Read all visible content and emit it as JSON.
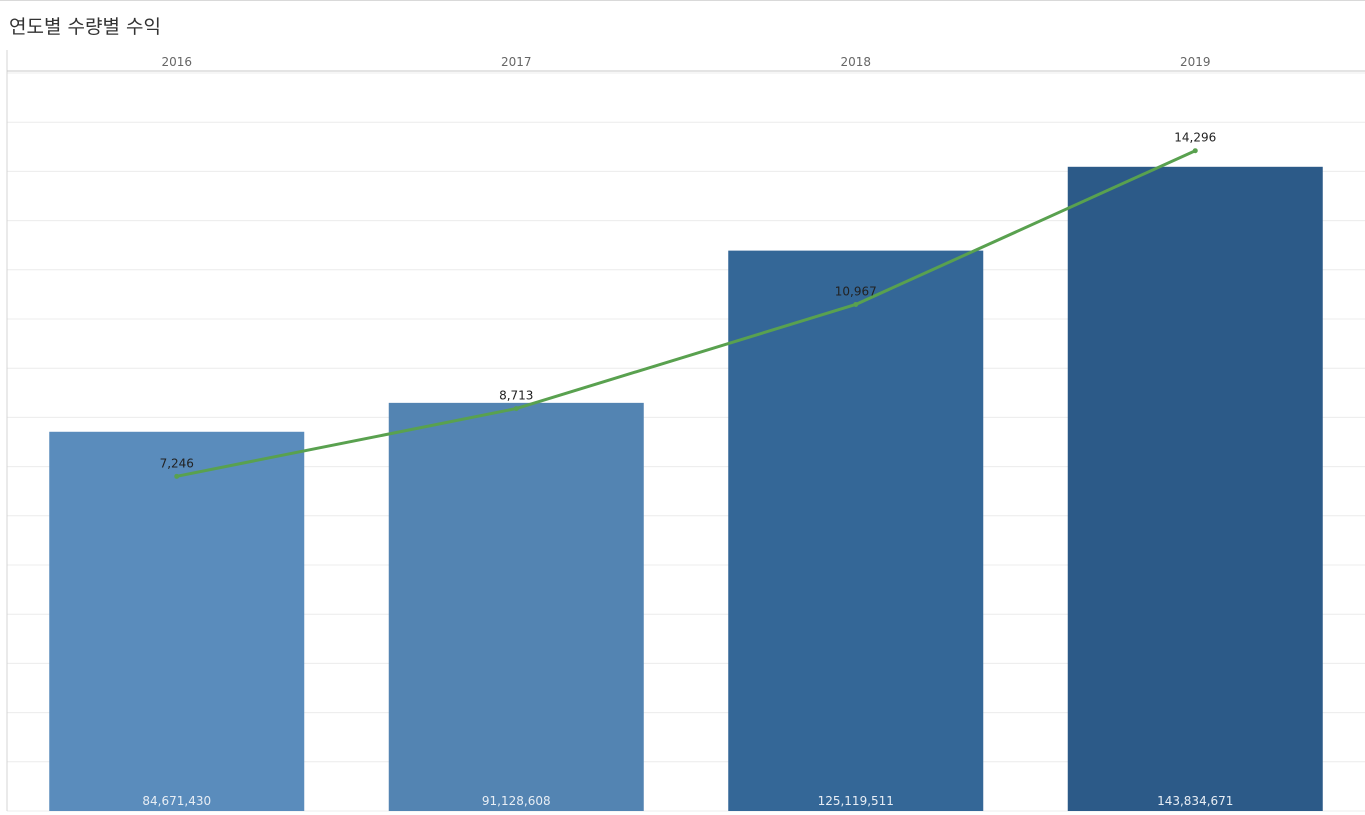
{
  "title": "연도별 수량별 수익",
  "colors": {
    "bar_light": "#5a8cbc",
    "bar_mid": "#5384b2",
    "bar_dark": "#346797",
    "bar_darker": "#2c5a88",
    "line": "#59a14f",
    "gridline": "#ececec",
    "header_rule": "#c8c8c8"
  },
  "chart_data": {
    "type": "bar",
    "categories": [
      "2016",
      "2017",
      "2018",
      "2019"
    ],
    "series": [
      {
        "values": [
          84671430,
          91128608,
          125119511,
          143834671
        ],
        "labels": [
          "84,671,430",
          "91,128,608",
          "125,119,511",
          "143,834,671"
        ]
      },
      {
        "mark": "line",
        "values": [
          7246,
          8713,
          10967,
          14296
        ],
        "labels": [
          "7,246",
          "8,713",
          "10,967",
          "14,296"
        ]
      }
    ],
    "ylim_bars": [
      0,
      165000000
    ],
    "ylim_line": [
      0,
      16000
    ],
    "grid": true,
    "legend": "none"
  }
}
